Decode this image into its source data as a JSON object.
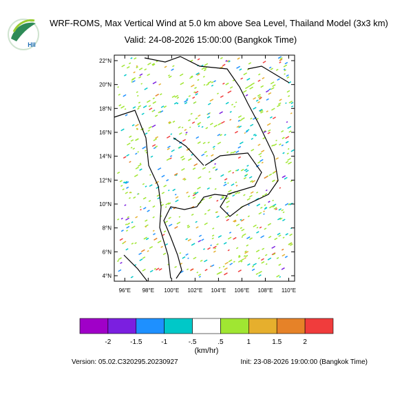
{
  "logo": "HII",
  "title": "WRF-ROMS, Max Vertical Wind at 5.0 km above Sea Level, Thailand Model (3x3 km)",
  "subtitle": "Valid: 24-08-2026 15:00:00 (Bangkok Time)",
  "map": {
    "xlim": [
      95.1,
      110.5
    ],
    "ylim": [
      3.54,
      22.46
    ],
    "xticks": [
      {
        "value": 96,
        "label": "96°E"
      },
      {
        "value": 98,
        "label": "98°E"
      },
      {
        "value": 100,
        "label": "100°E"
      },
      {
        "value": 102,
        "label": "102°E"
      },
      {
        "value": 104,
        "label": "104°E"
      },
      {
        "value": 106,
        "label": "106°E"
      },
      {
        "value": 108,
        "label": "108°E"
      },
      {
        "value": 110,
        "label": "110°E"
      }
    ],
    "yticks": [
      {
        "value": 4,
        "label": "4°N"
      },
      {
        "value": 6,
        "label": "6°N"
      },
      {
        "value": 8,
        "label": "8°N"
      },
      {
        "value": 10,
        "label": "10°N"
      },
      {
        "value": 12,
        "label": "12°N"
      },
      {
        "value": 14,
        "label": "14°N"
      },
      {
        "value": 16,
        "label": "16°N"
      },
      {
        "value": 18,
        "label": "18°N"
      },
      {
        "value": 20,
        "label": "20°N"
      },
      {
        "value": 22,
        "label": "22°N"
      }
    ]
  },
  "colorbar": {
    "colors": [
      "#a000c8",
      "#7b1fe0",
      "#1e90ff",
      "#00c8c8",
      "#ffffff",
      "#a0e632",
      "#e6af2d",
      "#e68228",
      "#f03c3c"
    ],
    "ticks": [
      -2,
      {
        "value": -1.5,
        "label": "-1.5"
      },
      -1,
      {
        "value": -0.5,
        "label": "-.5"
      },
      {
        "value": 0.5,
        "label": ".5"
      },
      1,
      {
        "value": 1.5,
        "label": "1.5"
      },
      2
    ],
    "units": "(km/hr)"
  },
  "version": "Version: 05.02.C320295.20230927",
  "init": "Init: 23-08-2026 19:00:00 (Bangkok Time)"
}
